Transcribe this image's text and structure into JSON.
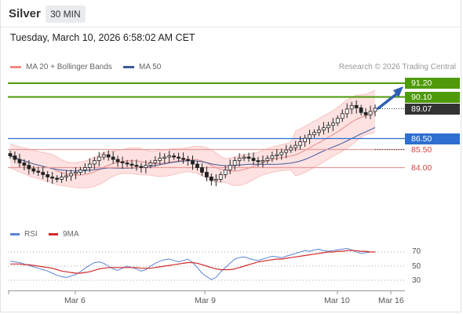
{
  "header": {
    "instrument": "Silver",
    "timeframe": "30 MIN"
  },
  "datetime": "Tuesday, March 10, 2026 6:58:02 AM CET",
  "legend": {
    "ma20_label": "MA 20 + Bollinger Bands",
    "ma20_color": "#f28b82",
    "ma50_label": "MA 50",
    "ma50_color": "#3d5a99",
    "copyright": "Research © 2026 Trading Central"
  },
  "levels": {
    "r2": {
      "label": "91.20",
      "color": "#4f9a0a"
    },
    "r1": {
      "label": "90.10",
      "color": "#4f9a0a"
    },
    "last": {
      "label": "89.07",
      "color": "#333333"
    },
    "pivot": {
      "label": "86.50",
      "color": "#2f6fd0"
    },
    "s1": {
      "label": "85.50",
      "color": "#d64545"
    },
    "s2": {
      "label": "84.00",
      "color": "#d64545"
    }
  },
  "rsi": {
    "legend_rsi": "RSI",
    "legend_9ma": "9MA",
    "rsi_color": "#5b82d6",
    "ma_color": "#d42a2a",
    "levels": [
      "70",
      "50",
      "30"
    ]
  },
  "x_axis": {
    "labels": [
      "Mar 6",
      "Mar 9",
      "Mar 10",
      "Mar 16"
    ]
  },
  "chart_data": {
    "type": "candlestick",
    "price_levels": [
      91.2,
      90.1,
      89.07,
      86.5,
      85.5,
      84.0
    ],
    "rsi_levels": [
      70,
      50,
      30
    ],
    "x_labels": [
      "Mar 6",
      "Mar 9",
      "Mar 10",
      "Mar 16"
    ],
    "close_approx": [
      85.0,
      84.7,
      84.4,
      84.2,
      83.9,
      83.7,
      83.6,
      83.4,
      83.2,
      83.1,
      83.0,
      83.2,
      83.3,
      83.5,
      83.6,
      83.8,
      84.0,
      84.3,
      84.6,
      84.9,
      85.1,
      84.9,
      84.7,
      84.5,
      84.4,
      84.3,
      84.2,
      84.1,
      84.0,
      84.2,
      84.4,
      84.6,
      84.8,
      84.9,
      85.0,
      84.9,
      84.8,
      84.7,
      84.6,
      84.3,
      84.0,
      83.6,
      83.2,
      82.9,
      83.0,
      83.4,
      83.8,
      84.2,
      84.6,
      84.8,
      84.9,
      84.8,
      84.6,
      84.5,
      84.6,
      84.8,
      85.0,
      85.1,
      85.3,
      85.5,
      85.7,
      85.9,
      86.2,
      86.5,
      86.8,
      87.0,
      87.2,
      87.4,
      87.6,
      87.8,
      88.2,
      88.6,
      89.0,
      89.3,
      89.1,
      88.7,
      88.5,
      88.8,
      89.07
    ],
    "rsi_approx": [
      57,
      56,
      55,
      53,
      51,
      49,
      47,
      45,
      43,
      40,
      37,
      35,
      34,
      36,
      38,
      42,
      47,
      51,
      55,
      56,
      54,
      50,
      46,
      44,
      47,
      50,
      48,
      46,
      43,
      45,
      50,
      54,
      57,
      59,
      60,
      58,
      56,
      58,
      60,
      55,
      48,
      40,
      35,
      31,
      34,
      42,
      48,
      54,
      60,
      62,
      63,
      61,
      59,
      58,
      60,
      62,
      64,
      63,
      62,
      64,
      66,
      68,
      70,
      72,
      71,
      73,
      74,
      72,
      71,
      72,
      73,
      74,
      75,
      73,
      70,
      68,
      69,
      70,
      70
    ],
    "rsi_ma_approx": [
      53,
      53,
      53,
      52,
      52,
      51,
      50,
      49,
      48,
      47,
      45,
      43,
      42,
      41,
      40,
      40,
      41,
      42,
      44,
      46,
      47,
      48,
      48,
      48,
      48,
      48,
      48,
      48,
      47,
      47,
      47,
      48,
      49,
      50,
      51,
      52,
      53,
      54,
      55,
      55,
      54,
      52,
      50,
      48,
      46,
      45,
      45,
      45,
      46,
      48,
      50,
      52,
      54,
      56,
      57,
      58,
      59,
      60,
      60,
      61,
      62,
      63,
      64,
      65,
      66,
      67,
      68,
      69,
      70,
      70,
      71,
      71,
      72,
      72,
      72,
      71,
      71,
      70,
      70
    ]
  }
}
